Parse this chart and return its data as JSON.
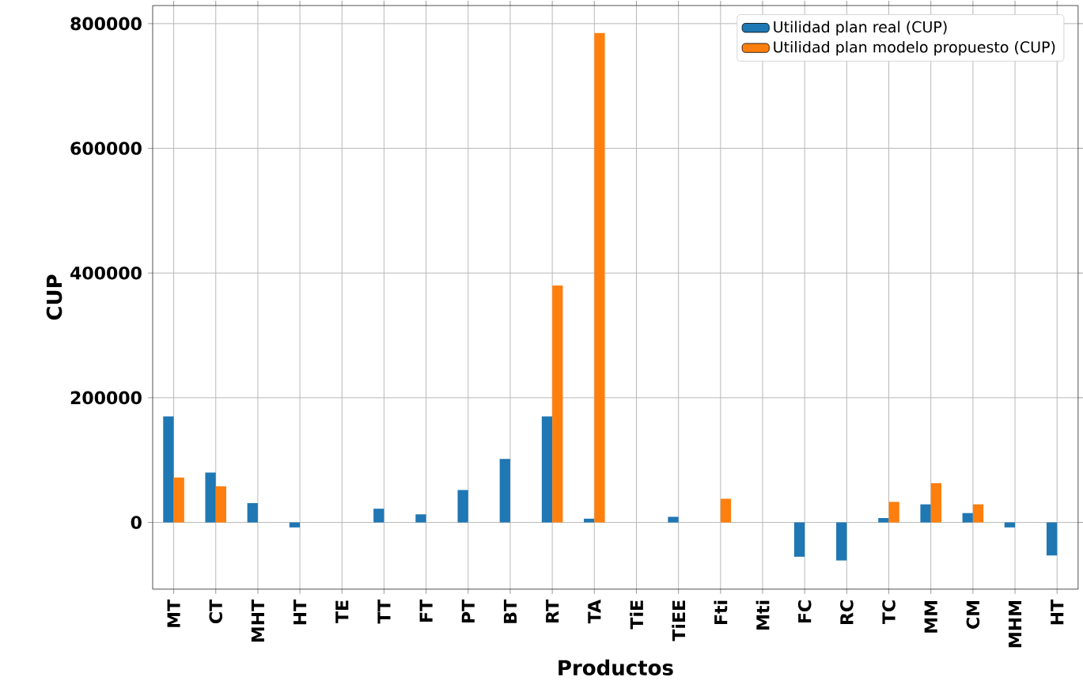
{
  "chart_data": {
    "type": "bar",
    "xlabel": "Productos",
    "ylabel": "CUP",
    "categories": [
      "MT",
      "CT",
      "MHT",
      "HT",
      "TE",
      "TT",
      "FT",
      "PT",
      "BT",
      "RT",
      "TA",
      "TiE",
      "TiEE",
      "Fti",
      "Mti",
      "FC",
      "RC",
      "TC",
      "MM",
      "CM",
      "MHM",
      "HT"
    ],
    "series": [
      {
        "name": "Utilidad  plan real (CUP)",
        "color": "#1f77b4",
        "values": [
          170000,
          80000,
          31000,
          -8000,
          0,
          22000,
          13000,
          52000,
          102000,
          170000,
          6000,
          0,
          9000,
          0,
          0,
          -55000,
          -61000,
          7000,
          29000,
          15000,
          -8000,
          -53000
        ]
      },
      {
        "name": "Utilidad  plan modelo propuesto (CUP)",
        "color": "#ff7f0e",
        "values": [
          72000,
          58000,
          0,
          0,
          0,
          0,
          0,
          0,
          0,
          380000,
          785000,
          0,
          0,
          38000,
          0,
          0,
          0,
          33000,
          63000,
          29000,
          0,
          0
        ]
      }
    ],
    "ylim": [
      -107000,
      829000
    ],
    "yticks": [
      0,
      200000,
      400000,
      600000,
      800000
    ],
    "grid": true,
    "legend": "top right"
  }
}
